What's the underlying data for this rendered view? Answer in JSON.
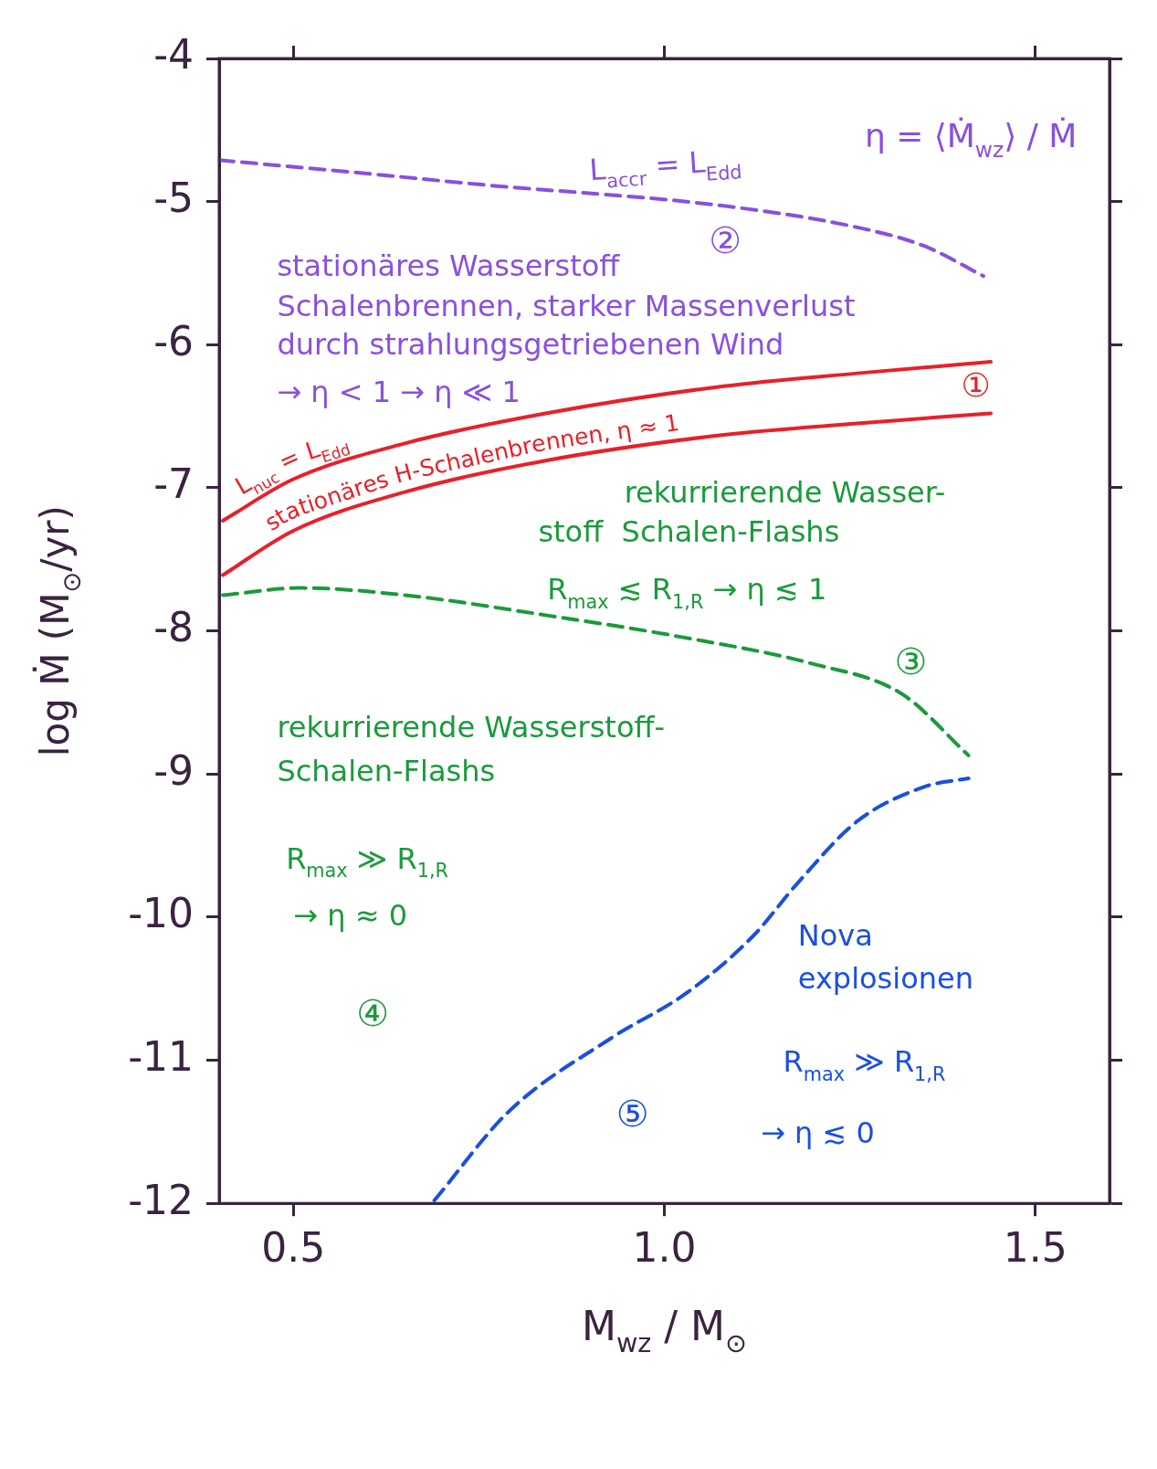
{
  "chart_data": {
    "type": "line",
    "xlabel": "M$_{wz}$ / M$_{⊙}$",
    "ylabel": "log Ṁ (M$_{⊙}$/yr)",
    "xlim": [
      0.4,
      1.6
    ],
    "xticks": [
      0.5,
      {
        "value": 1,
        "label": "1.0"
      },
      1.5
    ],
    "ylim": [
      -12,
      -4
    ],
    "yticks": [
      -12,
      -11,
      -10,
      -9,
      -8,
      -7,
      -6,
      -5,
      -4
    ],
    "grid": false,
    "legend": false,
    "marker": "none",
    "series": [
      {
        "color": "#8a4fe0",
        "line_style": "dashed",
        "x": [
          0.4,
          0.59,
          0.75,
          1.08,
          1.26,
          1.35,
          1.43
        ],
        "values": [
          -4.71,
          -4.8,
          -4.88,
          -5.03,
          -5.18,
          -5.31,
          -5.52
        ]
      },
      {
        "color": "#e8202a",
        "line_style": "solid",
        "x": [
          0.405,
          0.5,
          0.65,
          0.84,
          1.08,
          1.26,
          1.44
        ],
        "values": [
          -7.23,
          -6.94,
          -6.69,
          -6.48,
          -6.29,
          -6.2,
          -6.12
        ]
      },
      {
        "color": "#e8202a",
        "line_style": "solid",
        "x": [
          0.405,
          0.5,
          0.65,
          0.84,
          1.08,
          1.26,
          1.44
        ],
        "values": [
          -7.61,
          -7.3,
          -7.03,
          -6.81,
          -6.63,
          -6.55,
          -6.48
        ]
      },
      {
        "color": "#1a9a3c",
        "line_style": "dashed",
        "x": [
          0.405,
          0.51,
          0.65,
          0.84,
          1.02,
          1.2,
          1.32,
          1.41
        ],
        "values": [
          -7.75,
          -7.7,
          -7.75,
          -7.89,
          -8.04,
          -8.23,
          -8.44,
          -8.87
        ]
      },
      {
        "color": "#1a4fe0",
        "line_style": "dashed",
        "x": [
          0.69,
          0.79,
          0.93,
          1.03,
          1.12,
          1.18,
          1.26,
          1.35,
          1.41
        ],
        "values": [
          -11.98,
          -11.36,
          -10.84,
          -10.53,
          -10.13,
          -9.76,
          -9.33,
          -9.09,
          -9.03
        ]
      }
    ],
    "annotations": [
      "η = ⟨Ṁ$_{wz}$⟩ / Ṁ",
      "L$_{accr}$ = L$_{Edd}$",
      "②",
      "stationäres Wasserstoff",
      "Schalenbrennen, starker Massenverlust",
      "durch strahlungsgetriebenen Wind",
      "→ η < 1 → η ≪ 1",
      "①",
      "L$_{nuc}$ = L$_{Edd}$",
      "stationäres H-Schalenbrennen, η ≈ 1",
      "rekurrierende Wasser-",
      "stoff  Schalen-Flashs",
      "R$_{max}$ ≲ R$_{1,R}$ → η ≲ 1",
      "③",
      "rekurrierende Wasserstoff-",
      "Schalen-Flashs",
      "R$_{max}$ ≫ R$_{1,R}$",
      "→ η ≈ 0",
      "④",
      "Nova",
      "explosionen",
      "R$_{max}$ ≫ R$_{1,R}$",
      "→ η ≲ 0",
      "⑤"
    ]
  }
}
